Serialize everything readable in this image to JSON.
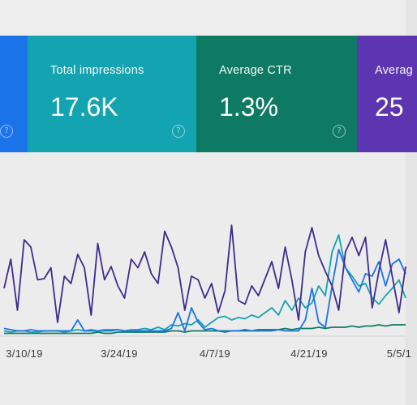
{
  "cards": [
    {
      "key": "clicks",
      "label": "",
      "value": "",
      "color": "#1a73e8"
    },
    {
      "key": "impressions",
      "label": "Total impressions",
      "value": "17.6K",
      "color": "#14a3b0"
    },
    {
      "key": "ctr",
      "label": "Average CTR",
      "value": "1.3%",
      "color": "#0e7a63"
    },
    {
      "key": "position",
      "label": "Averag",
      "value": "25",
      "color": "#5e35b1"
    }
  ],
  "help_icon": "help-circle-icon",
  "chart_data": {
    "type": "line",
    "xlabel": "",
    "ylabel": "",
    "grid": false,
    "x_ticks": [
      "3/10/19",
      "3/24/19",
      "4/7/19",
      "4/21/19",
      "5/5/1"
    ],
    "ylim": [
      0,
      100
    ],
    "series": [
      {
        "color": "#3f2a8e",
        "values": [
          38,
          62,
          20,
          78,
          72,
          45,
          46,
          55,
          10,
          48,
          42,
          66,
          55,
          16,
          75,
          45,
          56,
          40,
          30,
          62,
          55,
          68,
          50,
          42,
          85,
          72,
          55,
          20,
          48,
          45,
          30,
          42,
          18,
          36,
          90,
          28,
          25,
          40,
          32,
          46,
          60,
          38,
          72,
          45,
          12,
          68,
          88,
          65,
          52,
          40,
          20,
          68,
          80,
          65,
          80,
          22,
          52,
          78,
          48,
          18,
          56
        ]
      },
      {
        "color": "#1a73e8",
        "values": [
          5,
          4,
          3,
          3,
          4,
          3,
          3,
          3,
          3,
          3,
          3,
          12,
          3,
          3,
          3,
          3,
          3,
          4,
          3,
          3,
          3,
          3,
          3,
          3,
          3,
          5,
          18,
          3,
          22,
          10,
          4,
          5,
          3,
          2,
          3,
          3,
          3,
          3,
          3,
          3,
          3,
          4,
          3,
          3,
          3,
          12,
          38,
          10,
          6,
          40,
          70,
          55,
          45,
          35,
          50,
          48,
          60,
          40,
          58,
          62,
          50
        ]
      },
      {
        "color": "#14a3b0",
        "values": [
          3,
          2,
          3,
          3,
          2,
          2,
          3,
          3,
          3,
          2,
          3,
          4,
          3,
          4,
          3,
          4,
          4,
          4,
          3,
          4,
          4,
          5,
          4,
          6,
          4,
          8,
          7,
          9,
          8,
          12,
          6,
          10,
          14,
          15,
          12,
          14,
          13,
          16,
          14,
          18,
          22,
          16,
          28,
          20,
          30,
          22,
          26,
          40,
          32,
          68,
          82,
          55,
          48,
          40,
          42,
          30,
          25,
          32,
          38,
          45,
          30
        ]
      },
      {
        "color": "#0e7a63",
        "values": [
          1,
          1,
          1,
          1,
          1,
          1,
          1,
          1,
          1,
          1,
          1,
          1,
          1,
          1,
          2,
          1,
          1,
          2,
          2,
          2,
          2,
          2,
          2,
          2,
          2,
          3,
          3,
          2,
          3,
          3,
          3,
          3,
          3,
          3,
          3,
          3,
          4,
          3,
          4,
          4,
          4,
          4,
          5,
          4,
          5,
          5,
          5,
          6,
          5,
          6,
          6,
          6,
          7,
          6,
          7,
          7,
          8,
          7,
          8,
          8,
          8
        ]
      }
    ]
  }
}
